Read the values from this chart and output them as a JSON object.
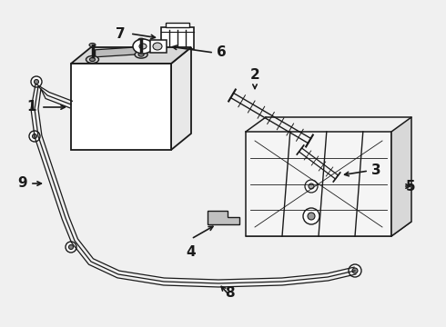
{
  "bg_color": "#f0f0f0",
  "line_color": "#1a1a1a",
  "figsize": [
    4.9,
    3.6
  ],
  "dpi": 100,
  "label_fontsize": 10
}
